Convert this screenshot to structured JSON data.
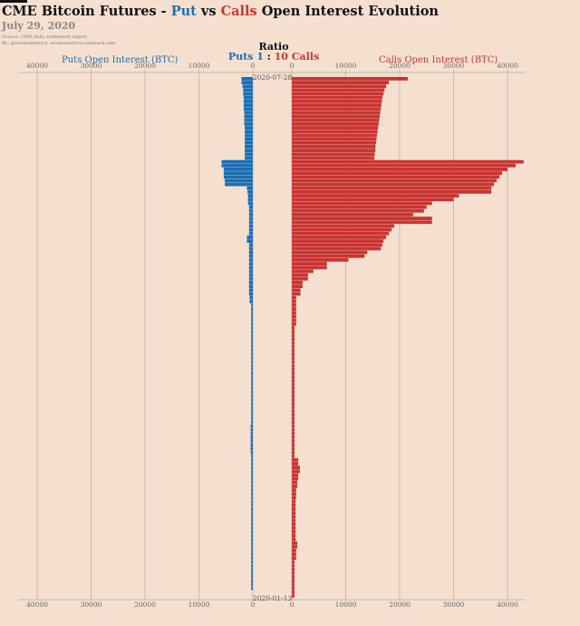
{
  "header": {
    "title_prefix": "CME Bitcoin Futures - ",
    "title_put": "Put",
    "title_vs": " vs ",
    "title_calls": "Calls",
    "title_suffix": " Open Interest Evolution",
    "date": "July 29, 2020",
    "source_line1": "Source: CME daily settlement report",
    "source_line2": "By: @ecoinometrics, ecoinometrics.substack.com"
  },
  "ratio": {
    "label": "Ratio",
    "puts_text": "Puts 1",
    "separator": " : ",
    "calls_text": "10 Calls"
  },
  "colors": {
    "put": "#1b6fb5",
    "call": "#c93533",
    "background": "#f5e0d0"
  },
  "chart_data": {
    "type": "bar",
    "orientation": "horizontal-mirrored",
    "title": "CME Bitcoin Futures - Put vs Calls Open Interest Evolution",
    "left_axis_label": "Puts Open Interest (BTC)",
    "right_axis_label": "Calls Open Interest (BTC)",
    "puts_ticks": [
      "40000",
      "30000",
      "20000",
      "10000",
      "0"
    ],
    "calls_ticks": [
      "0",
      "10000",
      "20000",
      "30000",
      "40000"
    ],
    "puts_tick_values": [
      40000,
      30000,
      20000,
      10000,
      0
    ],
    "calls_tick_values": [
      0,
      10000,
      20000,
      30000,
      40000
    ],
    "xlim": [
      0,
      43000
    ],
    "date_start": "2020-07-28",
    "date_end": "2020-01-13",
    "n_days": 136,
    "puts": [
      2100,
      2100,
      1900,
      1800,
      1800,
      1700,
      1700,
      1700,
      1700,
      1600,
      1600,
      1600,
      1600,
      1500,
      1500,
      1500,
      1500,
      1500,
      1500,
      1500,
      1500,
      1500,
      5800,
      5800,
      5400,
      5400,
      5400,
      5200,
      5200,
      1100,
      1000,
      900,
      900,
      900,
      700,
      700,
      700,
      700,
      700,
      700,
      700,
      700,
      1100,
      1100,
      700,
      700,
      700,
      700,
      700,
      700,
      700,
      700,
      700,
      700,
      700,
      700,
      700,
      700,
      600,
      600,
      300,
      300,
      300,
      300,
      300,
      300,
      300,
      300,
      300,
      300,
      300,
      300,
      300,
      300,
      300,
      300,
      300,
      300,
      300,
      300,
      300,
      300,
      300,
      300,
      300,
      300,
      300,
      300,
      300,
      300,
      300,
      300,
      400,
      400,
      400,
      400,
      400,
      400,
      400,
      400,
      300,
      300,
      300,
      300,
      300,
      300,
      300,
      300,
      300,
      300,
      300,
      300,
      300,
      300,
      300,
      300,
      300,
      300,
      300,
      300,
      300,
      300,
      300,
      300,
      300,
      300,
      300,
      300,
      300,
      300,
      300,
      300,
      300,
      300,
      300,
      300
    ],
    "calls": [
      21500,
      18000,
      17500,
      17200,
      17000,
      16800,
      16700,
      16600,
      16500,
      16400,
      16300,
      16200,
      16100,
      16000,
      15900,
      15800,
      15700,
      15600,
      15500,
      15500,
      15400,
      15300,
      43000,
      41500,
      40000,
      39000,
      38500,
      38000,
      37500,
      37000,
      37000,
      31000,
      30000,
      26000,
      25000,
      24500,
      22500,
      26000,
      26000,
      19000,
      18500,
      18000,
      17500,
      17000,
      16800,
      16500,
      14000,
      13500,
      10500,
      6500,
      6500,
      4000,
      3000,
      3000,
      2000,
      2000,
      1600,
      1600,
      800,
      800,
      800,
      800,
      800,
      800,
      800,
      800,
      500,
      500,
      500,
      500,
      500,
      500,
      500,
      500,
      500,
      500,
      500,
      500,
      500,
      500,
      500,
      500,
      500,
      500,
      500,
      500,
      500,
      500,
      500,
      500,
      500,
      500,
      500,
      500,
      500,
      500,
      500,
      500,
      500,
      500,
      500,
      1200,
      1200,
      1500,
      1500,
      1200,
      1200,
      1000,
      1000,
      800,
      800,
      800,
      700,
      700,
      700,
      700,
      700,
      700,
      700,
      700,
      700,
      700,
      700,
      1000,
      1000,
      800,
      800,
      800,
      500,
      500,
      500,
      500,
      500,
      500,
      500,
      500,
      500,
      500
    ]
  }
}
